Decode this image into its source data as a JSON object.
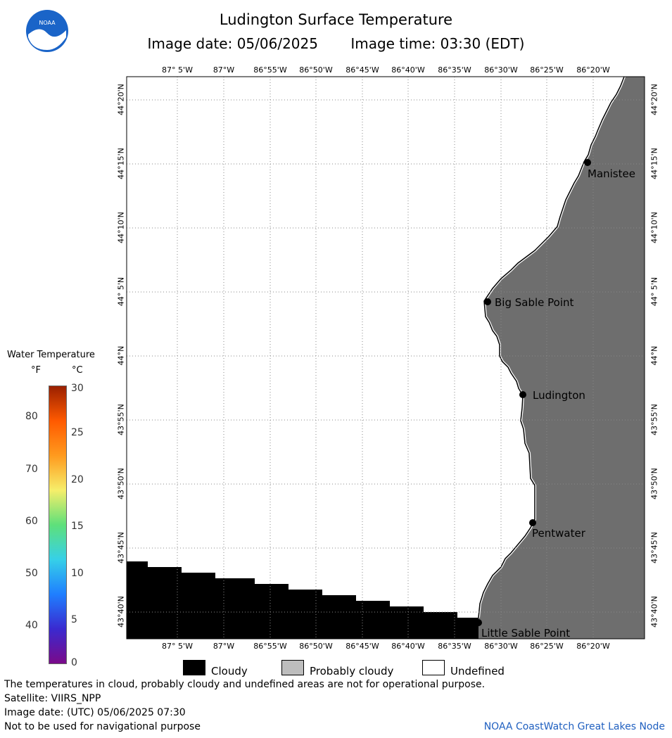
{
  "header": {
    "title": "Ludington Surface Temperature",
    "image_date": "Image date: 05/06/2025",
    "image_time": "Image time: 03:30 (EDT)"
  },
  "logo": {
    "text": "NOAA"
  },
  "map": {
    "lon_labels": [
      "87° 5'W",
      "87°W",
      "86°55'W",
      "86°50'W",
      "86°45'W",
      "86°40'W",
      "86°35'W",
      "86°30'W",
      "86°25'W",
      "86°20'W"
    ],
    "lat_labels": [
      "44°20'N",
      "44°15'N",
      "44°10'N",
      "44° 5'N",
      "44°N",
      "43°55'N",
      "43°50'N",
      "43°45'N",
      "43°40'N"
    ],
    "places": [
      {
        "name": "Manistee"
      },
      {
        "name": "Big Sable Point"
      },
      {
        "name": "Ludington"
      },
      {
        "name": "Pentwater"
      },
      {
        "name": "Little Sable Point"
      }
    ],
    "colors": {
      "land": "#6e6e6e",
      "cloudy": "#000000",
      "water_undefined": "#ffffff"
    }
  },
  "legend": {
    "title": "Water Temperature",
    "unit_f": "°F",
    "unit_c": "°C",
    "f_ticks": [
      "80",
      "70",
      "60",
      "50",
      "40"
    ],
    "c_ticks": [
      "30",
      "25",
      "20",
      "15",
      "10",
      "5",
      "0"
    ],
    "colors": [
      "#7a0a8a",
      "#3a2ad0",
      "#1f7fff",
      "#36d0e8",
      "#5ee07a",
      "#f6ee6a",
      "#ff9a1e",
      "#ff5a00",
      "#9a2000"
    ]
  },
  "key": {
    "items": [
      {
        "label": "Cloudy",
        "color": "#000000"
      },
      {
        "label": "Probably cloudy",
        "color": "#bdbdbd"
      },
      {
        "label": "Undefined",
        "color": "#ffffff"
      }
    ]
  },
  "footer": {
    "note": "The temperatures in cloud, probably cloudy and undefined areas are not for operational purpose.",
    "satellite": "Satellite: VIIRS_NPP",
    "utc_date": "Image date: (UTC) 05/06/2025  07:30",
    "nav_warning": "Not to be used for navigational purpose",
    "credit": "NOAA CoastWatch Great Lakes Node"
  }
}
